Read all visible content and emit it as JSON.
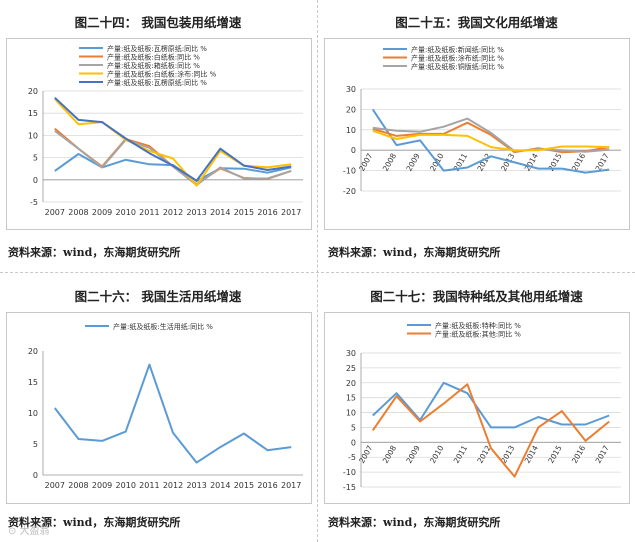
{
  "source_note": "资料来源：wind，东海期货研究所",
  "watermark": "⊙ 大盈翁",
  "chart_data": [
    {
      "id": "c24",
      "title": "图二十四：  我国包装用纸增速",
      "type": "line",
      "x": [
        "2007",
        "2008",
        "2009",
        "2010",
        "2011",
        "2012",
        "2013",
        "2014",
        "2015",
        "2016",
        "2017"
      ],
      "ylim": [
        -5,
        20
      ],
      "yticks": [
        -5,
        0,
        5,
        10,
        15,
        20
      ],
      "grid": true,
      "legend": "top",
      "series": [
        {
          "name": "产量:纸及纸板:瓦楞原纸:同比 %",
          "color": "#5b9bd5",
          "values": [
            2,
            5.8,
            2.8,
            4.5,
            3.5,
            3.3,
            -0.3,
            2.6,
            2.5,
            1.6,
            2.8
          ]
        },
        {
          "name": "产量:纸及纸板:白纸板:同比 %",
          "color": "#ed7d31",
          "values": [
            11.5,
            7,
            3,
            9.2,
            7.6,
            3,
            -1,
            2.6,
            0.4,
            0.2,
            2
          ]
        },
        {
          "name": "产量:纸及纸板:箱纸板:同比 %",
          "color": "#a5a5a5",
          "values": [
            11,
            7,
            2.8,
            9,
            7.2,
            3,
            -1.2,
            2.8,
            0.3,
            0.3,
            2
          ]
        },
        {
          "name": "产量:纸及纸板:白纸板:涂布:同比 %",
          "color": "#ffc000",
          "values": [
            18.2,
            12.5,
            13,
            9,
            6.5,
            4.8,
            -1.3,
            6.5,
            3.2,
            2.8,
            3.5
          ]
        },
        {
          "name": "产量:纸及纸板:瓦楞原纸:同比 %",
          "color": "#4472c4",
          "values": [
            18.5,
            13.5,
            13,
            9.3,
            6,
            3.2,
            -0.2,
            7,
            3.2,
            2.2,
            3
          ]
        }
      ]
    },
    {
      "id": "c25",
      "title": "图二十五：我国文化用纸增速",
      "type": "line",
      "x": [
        "2007",
        "2008",
        "2009",
        "2010",
        "2011",
        "2012",
        "2013",
        "2014",
        "2015",
        "2016",
        "2017"
      ],
      "ylim": [
        -20,
        30
      ],
      "yticks": [
        -20,
        -10,
        0,
        10,
        20,
        30
      ],
      "grid": true,
      "legend": "top",
      "series": [
        {
          "name": "产量:纸及纸板:新闻纸:同比 %",
          "color": "#5b9bd5",
          "values": [
            20,
            2.5,
            4.8,
            -10,
            -8.5,
            -3,
            -6,
            -9,
            -9,
            -11,
            -9.5
          ]
        },
        {
          "name": "产量:纸及纸板:涂布纸:同比 %",
          "color": "#ed7d31",
          "values": [
            10.5,
            7,
            8,
            8,
            13.5,
            7.5,
            -1,
            1,
            -1,
            -0.5,
            1.5
          ]
        },
        {
          "name": "产量:纸及纸板:铜版纸:同比 %",
          "color": "#a5a5a5",
          "values": [
            11,
            9.5,
            9,
            11.5,
            15.5,
            8.5,
            -0.5,
            0.5,
            0,
            -0.8,
            0.3
          ]
        },
        {
          "name": "",
          "color": "#ffc000",
          "values": [
            9.5,
            5.5,
            7.5,
            7.5,
            7,
            1.5,
            0,
            0,
            1.8,
            1.8,
            1.5
          ]
        }
      ]
    },
    {
      "id": "c26",
      "title": "图二十六：  我国生活用纸增速",
      "type": "line",
      "x": [
        "2007",
        "2008",
        "2009",
        "2010",
        "2011",
        "2012",
        "2013",
        "2014",
        "2015",
        "2016",
        "2017"
      ],
      "ylim": [
        0,
        20
      ],
      "yticks": [
        0,
        5,
        10,
        15,
        20
      ],
      "grid": false,
      "legend": "top",
      "series": [
        {
          "name": "产量:纸及纸板:生活用纸:同比 %",
          "color": "#5b9bd5",
          "values": [
            10.8,
            5.8,
            5.5,
            7,
            17.8,
            6.8,
            2,
            4.5,
            6.7,
            4,
            4.5
          ]
        }
      ]
    },
    {
      "id": "c27",
      "title": "图二十七：我国特种纸及其他用纸增速",
      "type": "line",
      "x": [
        "2007",
        "2008",
        "2009",
        "2010",
        "2011",
        "2012",
        "2013",
        "2014",
        "2015",
        "2016",
        "2017"
      ],
      "ylim": [
        -15,
        30
      ],
      "yticks": [
        -15,
        -10,
        -5,
        0,
        5,
        10,
        15,
        20,
        25,
        30
      ],
      "grid": true,
      "legend": "top",
      "series": [
        {
          "name": "产量:纸及纸板:特种:同比 %",
          "color": "#5b9bd5",
          "values": [
            9,
            16.5,
            7.5,
            20,
            16.5,
            5,
            5,
            8.5,
            6,
            6,
            9
          ]
        },
        {
          "name": "产量:纸及纸板:其他:同比 %",
          "color": "#ed7d31",
          "values": [
            4,
            15.5,
            7,
            13,
            19.5,
            -2,
            -11.5,
            5,
            10.5,
            0.5,
            7
          ]
        }
      ]
    }
  ]
}
